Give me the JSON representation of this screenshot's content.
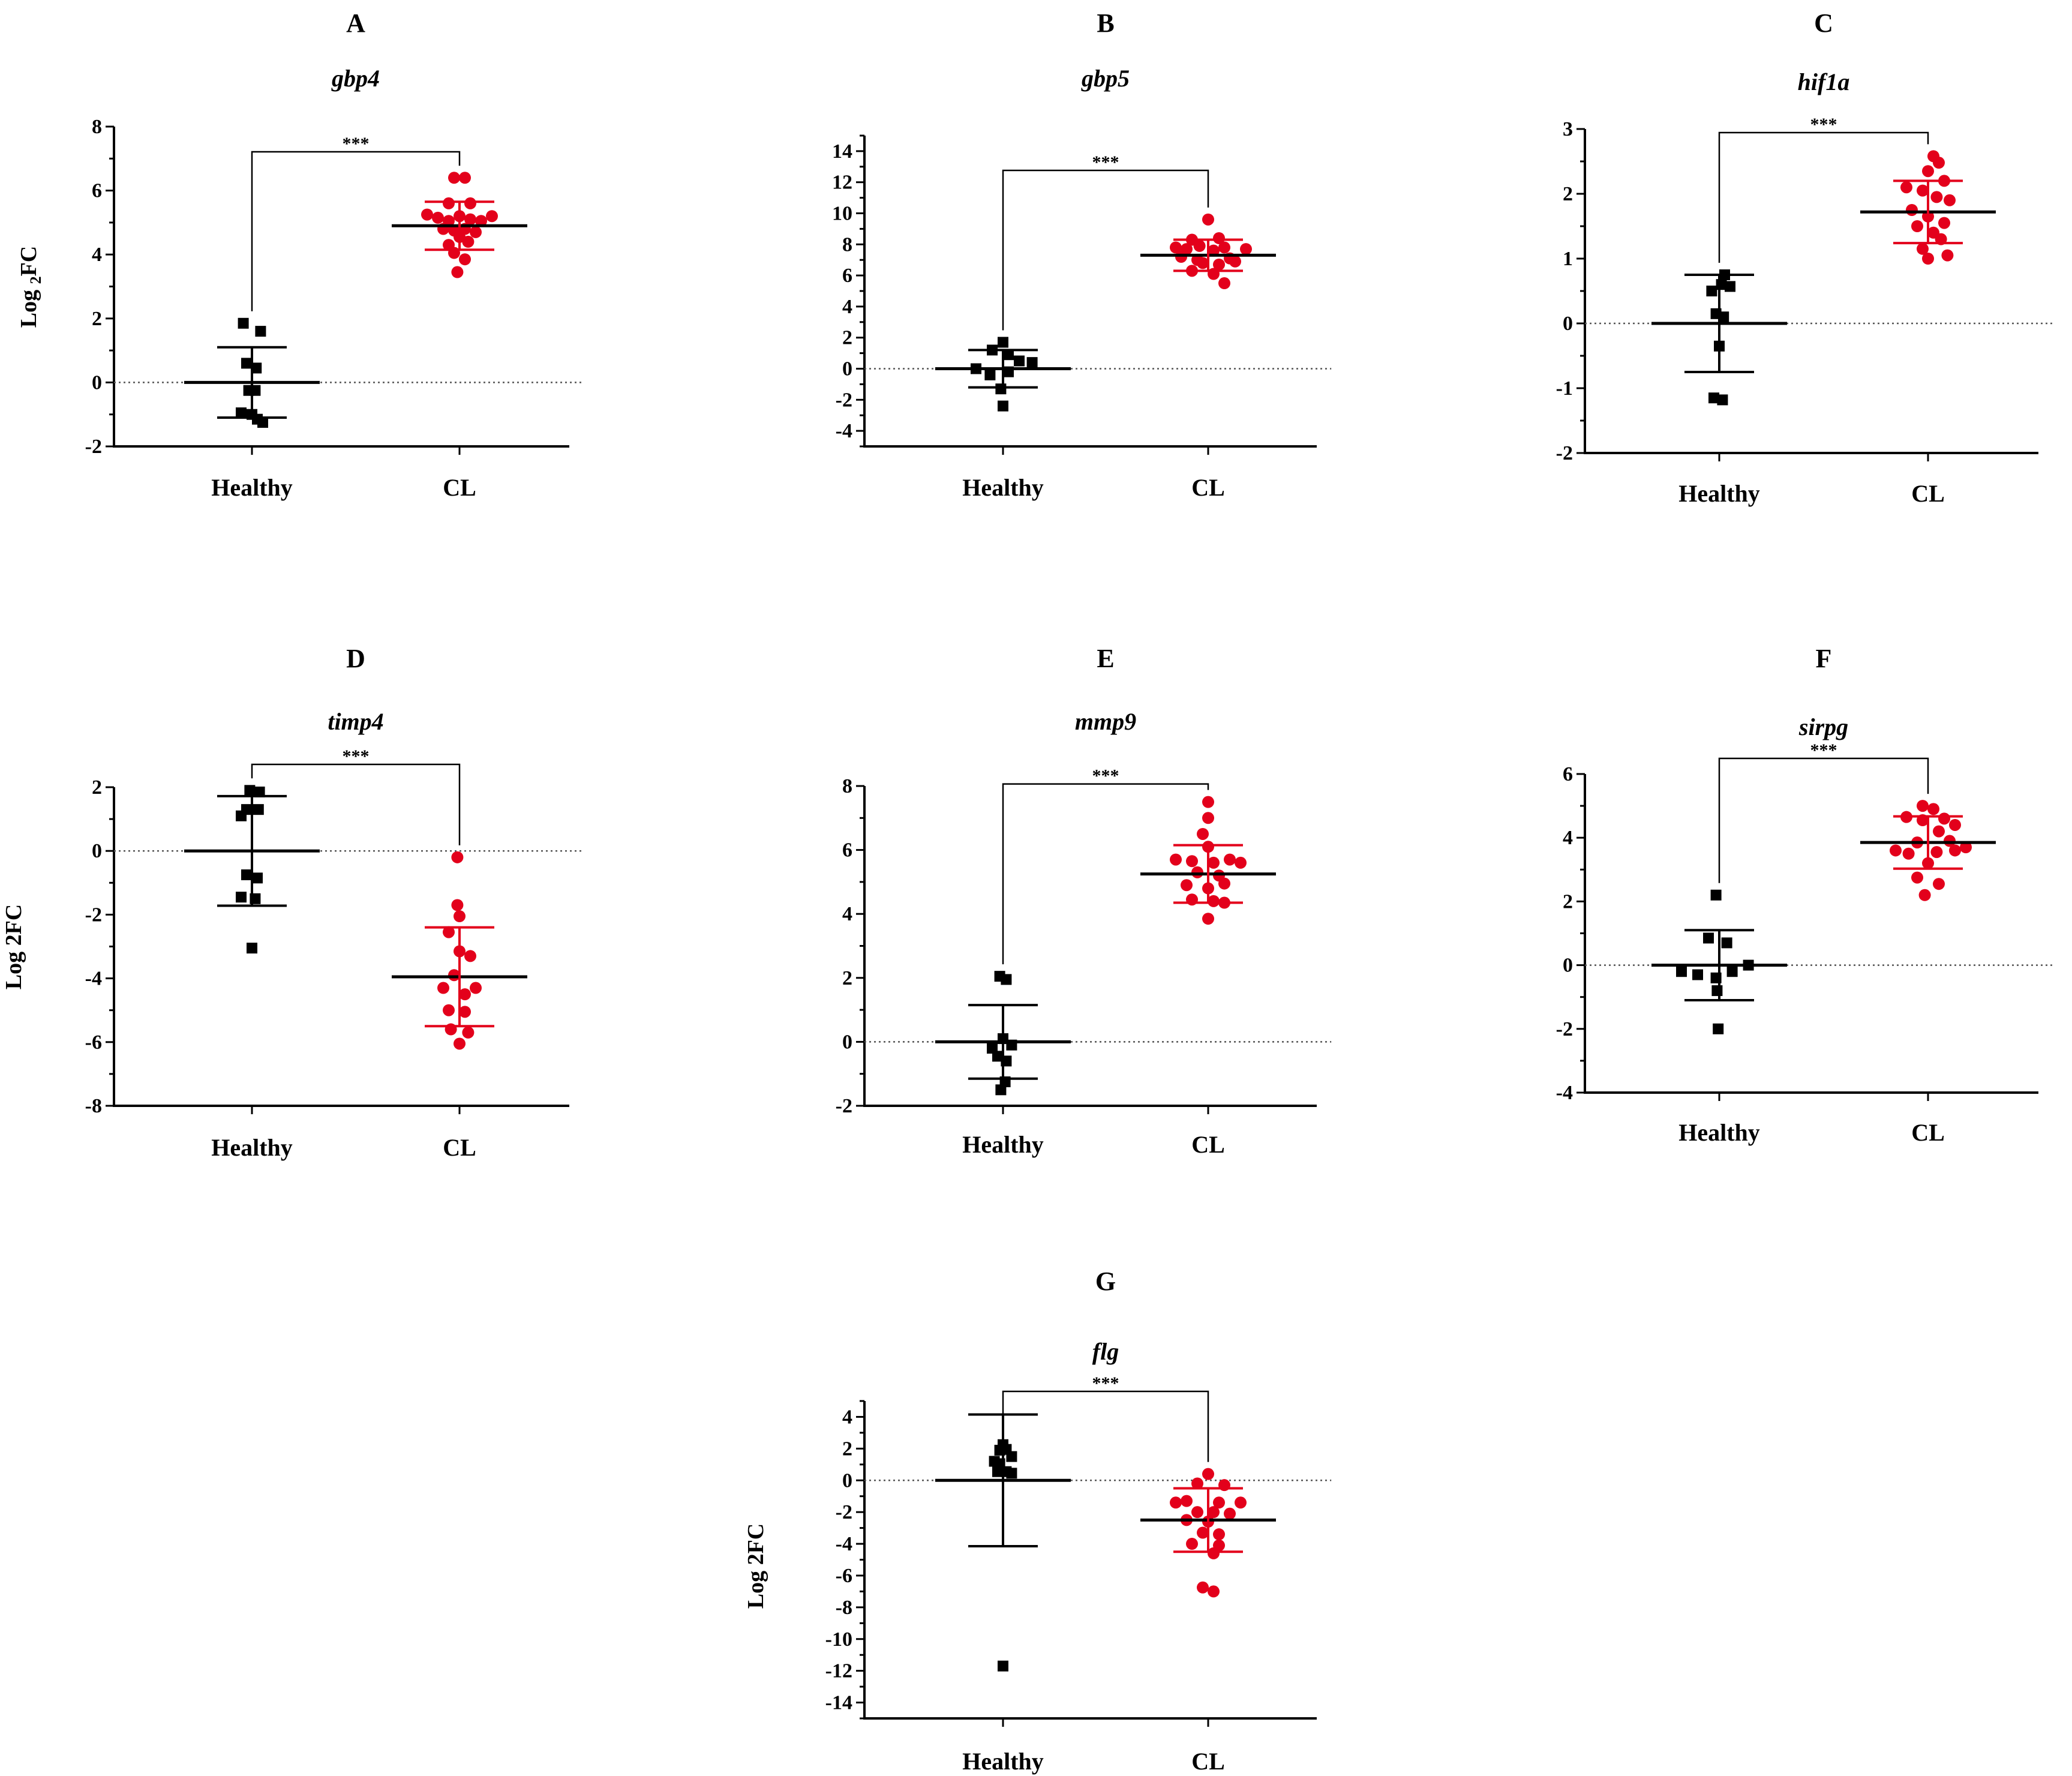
{
  "figure": {
    "categories": [
      "Healthy",
      "CL"
    ]
  },
  "colors": {
    "healthy": "#000000",
    "cl": "#e3001b",
    "zero_line": "#555555"
  },
  "chart_data": [
    {
      "type": "scatter",
      "panel": "A",
      "title": "gbp4",
      "ylabel": "Log 2FC",
      "ylabel_parts": {
        "pre": "Log ",
        "sub": "2",
        "post": "FC"
      },
      "categories": [
        "Healthy",
        "CL"
      ],
      "ylim": [
        -2,
        8
      ],
      "yticks": [
        -2,
        0,
        2,
        4,
        6,
        8
      ],
      "significance": "***",
      "series": [
        {
          "name": "Healthy",
          "marker": "square",
          "mean": 0,
          "sd": 1.1,
          "points": [
            [
              -0.08,
              1.85
            ],
            [
              0.08,
              1.6
            ],
            [
              -0.05,
              0.6
            ],
            [
              0.04,
              0.45
            ],
            [
              -0.03,
              -0.25
            ],
            [
              0.03,
              -0.25
            ],
            [
              -0.1,
              -0.95
            ],
            [
              0.0,
              -1.0
            ],
            [
              0.05,
              -1.15
            ],
            [
              0.1,
              -1.25
            ]
          ]
        },
        {
          "name": "CL",
          "marker": "circle",
          "mean": 4.9,
          "sd": 0.75,
          "points": [
            [
              -0.05,
              6.4
            ],
            [
              0.05,
              6.4
            ],
            [
              -0.1,
              5.6
            ],
            [
              0.1,
              5.6
            ],
            [
              -0.3,
              5.25
            ],
            [
              -0.2,
              5.15
            ],
            [
              -0.1,
              5.05
            ],
            [
              0.0,
              5.2
            ],
            [
              0.1,
              5.1
            ],
            [
              0.2,
              5.05
            ],
            [
              0.3,
              5.2
            ],
            [
              -0.15,
              4.8
            ],
            [
              -0.05,
              4.75
            ],
            [
              0.05,
              4.8
            ],
            [
              0.15,
              4.7
            ],
            [
              0.0,
              4.55
            ],
            [
              -0.1,
              4.3
            ],
            [
              0.08,
              4.4
            ],
            [
              -0.05,
              4.05
            ],
            [
              0.05,
              3.85
            ],
            [
              -0.02,
              3.45
            ]
          ]
        }
      ]
    },
    {
      "type": "scatter",
      "panel": "B",
      "title": "gbp5",
      "ylabel": "",
      "categories": [
        "Healthy",
        "CL"
      ],
      "ylim": [
        -5,
        15
      ],
      "yticks": [
        -4,
        -2,
        0,
        2,
        4,
        6,
        8,
        10,
        12,
        14
      ],
      "significance": "***",
      "series": [
        {
          "name": "Healthy",
          "marker": "square",
          "mean": 0,
          "sd": 1.2,
          "points": [
            [
              0.0,
              1.7
            ],
            [
              -0.1,
              1.2
            ],
            [
              0.05,
              0.9
            ],
            [
              0.15,
              0.5
            ],
            [
              0.27,
              0.4
            ],
            [
              -0.25,
              0.0
            ],
            [
              -0.12,
              -0.4
            ],
            [
              0.05,
              -0.2
            ],
            [
              -0.02,
              -1.3
            ],
            [
              0.0,
              -2.4
            ]
          ]
        },
        {
          "name": "CL",
          "marker": "circle",
          "mean": 7.3,
          "sd": 1.0,
          "points": [
            [
              0.0,
              9.6
            ],
            [
              -0.15,
              8.3
            ],
            [
              0.1,
              8.4
            ],
            [
              -0.3,
              7.8
            ],
            [
              -0.2,
              7.7
            ],
            [
              -0.08,
              7.9
            ],
            [
              0.05,
              7.6
            ],
            [
              0.15,
              7.8
            ],
            [
              0.35,
              7.7
            ],
            [
              -0.25,
              7.2
            ],
            [
              -0.1,
              7.0
            ],
            [
              0.2,
              7.1
            ],
            [
              -0.05,
              6.8
            ],
            [
              0.1,
              6.7
            ],
            [
              0.25,
              6.9
            ],
            [
              -0.15,
              6.3
            ],
            [
              0.05,
              6.1
            ],
            [
              0.15,
              5.5
            ]
          ]
        }
      ]
    },
    {
      "type": "scatter",
      "panel": "C",
      "title": "hif1a",
      "ylabel": "",
      "categories": [
        "Healthy",
        "CL"
      ],
      "ylim": [
        -2,
        3
      ],
      "yticks": [
        -2,
        -1,
        0,
        1,
        2,
        3
      ],
      "significance": "***",
      "series": [
        {
          "name": "Healthy",
          "marker": "square",
          "mean": 0,
          "sd": 0.75,
          "points": [
            [
              0.05,
              0.75
            ],
            [
              0.02,
              0.6
            ],
            [
              0.1,
              0.57
            ],
            [
              -0.07,
              0.5
            ],
            [
              -0.03,
              0.15
            ],
            [
              0.04,
              0.1
            ],
            [
              0.0,
              -0.35
            ],
            [
              -0.05,
              -1.15
            ],
            [
              0.03,
              -1.18
            ]
          ]
        },
        {
          "name": "CL",
          "marker": "circle",
          "mean": 1.72,
          "sd": 0.48,
          "points": [
            [
              0.05,
              2.58
            ],
            [
              0.1,
              2.48
            ],
            [
              0.0,
              2.35
            ],
            [
              0.15,
              2.2
            ],
            [
              -0.2,
              2.1
            ],
            [
              -0.05,
              2.05
            ],
            [
              0.08,
              1.95
            ],
            [
              0.2,
              1.9
            ],
            [
              -0.15,
              1.75
            ],
            [
              0.0,
              1.65
            ],
            [
              0.15,
              1.55
            ],
            [
              -0.1,
              1.5
            ],
            [
              0.05,
              1.4
            ],
            [
              0.12,
              1.3
            ],
            [
              -0.05,
              1.15
            ],
            [
              0.18,
              1.05
            ],
            [
              0.0,
              1.0
            ]
          ]
        }
      ]
    },
    {
      "type": "scatter",
      "panel": "D",
      "title": "timp4",
      "ylabel": "Log 2FC",
      "categories": [
        "Healthy",
        "CL"
      ],
      "ylim": [
        -8,
        2
      ],
      "yticks": [
        -8,
        -6,
        -4,
        -2,
        0,
        2
      ],
      "significance": "***",
      "series": [
        {
          "name": "Healthy",
          "marker": "square",
          "mean": 0,
          "sd": 1.72,
          "points": [
            [
              -0.02,
              1.9
            ],
            [
              0.07,
              1.85
            ],
            [
              -0.05,
              1.3
            ],
            [
              0.06,
              1.3
            ],
            [
              -0.1,
              1.1
            ],
            [
              -0.05,
              -0.75
            ],
            [
              0.05,
              -0.85
            ],
            [
              -0.1,
              -1.45
            ],
            [
              0.03,
              -1.5
            ],
            [
              0.0,
              -3.05
            ]
          ]
        },
        {
          "name": "CL",
          "marker": "circle",
          "mean": -3.95,
          "sd": 1.55,
          "points": [
            [
              -0.02,
              -0.2
            ],
            [
              -0.02,
              -1.7
            ],
            [
              0.0,
              -2.05
            ],
            [
              -0.1,
              -2.55
            ],
            [
              0.0,
              -3.15
            ],
            [
              0.1,
              -3.3
            ],
            [
              -0.05,
              -3.9
            ],
            [
              -0.15,
              -4.3
            ],
            [
              0.05,
              -4.5
            ],
            [
              0.15,
              -4.3
            ],
            [
              -0.1,
              -5.0
            ],
            [
              0.05,
              -5.05
            ],
            [
              -0.08,
              -5.6
            ],
            [
              0.08,
              -5.7
            ],
            [
              0.0,
              -6.05
            ]
          ]
        }
      ]
    },
    {
      "type": "scatter",
      "panel": "E",
      "title": "mmp9",
      "ylabel": "",
      "categories": [
        "Healthy",
        "CL"
      ],
      "ylim": [
        -2,
        8
      ],
      "yticks": [
        -2,
        0,
        2,
        4,
        6,
        8
      ],
      "significance": "***",
      "series": [
        {
          "name": "Healthy",
          "marker": "square",
          "mean": 0,
          "sd": 1.15,
          "points": [
            [
              -0.03,
              2.05
            ],
            [
              0.03,
              1.95
            ],
            [
              0.0,
              0.1
            ],
            [
              -0.1,
              -0.2
            ],
            [
              0.08,
              -0.1
            ],
            [
              -0.05,
              -0.45
            ],
            [
              0.03,
              -0.6
            ],
            [
              0.02,
              -1.25
            ],
            [
              -0.02,
              -1.5
            ]
          ]
        },
        {
          "name": "CL",
          "marker": "circle",
          "mean": 5.25,
          "sd": 0.9,
          "points": [
            [
              0.0,
              7.5
            ],
            [
              0.0,
              7.0
            ],
            [
              -0.05,
              6.5
            ],
            [
              0.0,
              6.1
            ],
            [
              -0.3,
              5.7
            ],
            [
              -0.15,
              5.65
            ],
            [
              0.05,
              5.6
            ],
            [
              0.2,
              5.7
            ],
            [
              0.3,
              5.6
            ],
            [
              -0.1,
              5.3
            ],
            [
              0.1,
              5.2
            ],
            [
              -0.2,
              4.9
            ],
            [
              0.0,
              4.8
            ],
            [
              0.15,
              4.95
            ],
            [
              -0.15,
              4.45
            ],
            [
              0.05,
              4.4
            ],
            [
              0.15,
              4.35
            ],
            [
              0.0,
              3.85
            ]
          ]
        }
      ]
    },
    {
      "type": "scatter",
      "panel": "F",
      "title": "sirpg",
      "ylabel": "",
      "categories": [
        "Healthy",
        "CL"
      ],
      "ylim": [
        -4,
        6
      ],
      "yticks": [
        -4,
        -2,
        0,
        2,
        4,
        6
      ],
      "significance": "***",
      "series": [
        {
          "name": "Healthy",
          "marker": "square",
          "mean": 0,
          "sd": 1.1,
          "points": [
            [
              -0.03,
              2.2
            ],
            [
              -0.1,
              0.85
            ],
            [
              0.07,
              0.7
            ],
            [
              -0.35,
              -0.2
            ],
            [
              -0.2,
              -0.3
            ],
            [
              0.12,
              -0.2
            ],
            [
              0.27,
              0.0
            ],
            [
              -0.03,
              -0.4
            ],
            [
              -0.02,
              -0.8
            ],
            [
              -0.01,
              -2.0
            ]
          ]
        },
        {
          "name": "CL",
          "marker": "circle",
          "mean": 3.85,
          "sd": 0.82,
          "points": [
            [
              -0.05,
              5.0
            ],
            [
              0.05,
              4.9
            ],
            [
              -0.2,
              4.65
            ],
            [
              -0.05,
              4.55
            ],
            [
              0.15,
              4.6
            ],
            [
              0.25,
              4.4
            ],
            [
              0.1,
              4.2
            ],
            [
              -0.1,
              3.85
            ],
            [
              0.2,
              3.9
            ],
            [
              0.35,
              3.7
            ],
            [
              -0.3,
              3.6
            ],
            [
              -0.18,
              3.5
            ],
            [
              0.08,
              3.55
            ],
            [
              0.25,
              3.6
            ],
            [
              0.0,
              3.2
            ],
            [
              -0.1,
              2.75
            ],
            [
              0.1,
              2.55
            ],
            [
              -0.03,
              2.2
            ]
          ]
        }
      ]
    },
    {
      "type": "scatter",
      "panel": "G",
      "title": "flg",
      "ylabel": "Log 2FC",
      "categories": [
        "Healthy",
        "CL"
      ],
      "ylim": [
        -15,
        5
      ],
      "yticks": [
        -14,
        -12,
        -10,
        -8,
        -6,
        -4,
        -2,
        0,
        2,
        4
      ],
      "significance": "***",
      "series": [
        {
          "name": "Healthy",
          "marker": "square",
          "mean": 0,
          "sd": 4.15,
          "points": [
            [
              0.0,
              2.25
            ],
            [
              -0.03,
              1.9
            ],
            [
              0.03,
              1.95
            ],
            [
              0.08,
              1.5
            ],
            [
              -0.08,
              1.2
            ],
            [
              -0.03,
              1.05
            ],
            [
              0.03,
              0.55
            ],
            [
              0.08,
              0.45
            ],
            [
              -0.05,
              0.55
            ],
            [
              0.0,
              -11.7
            ]
          ]
        },
        {
          "name": "CL",
          "marker": "circle",
          "mean": -2.5,
          "sd": 2.0,
          "points": [
            [
              0.0,
              0.4
            ],
            [
              -0.1,
              -0.2
            ],
            [
              0.15,
              -0.3
            ],
            [
              -0.3,
              -1.4
            ],
            [
              -0.2,
              -1.3
            ],
            [
              0.1,
              -1.4
            ],
            [
              0.3,
              -1.4
            ],
            [
              -0.1,
              -2.0
            ],
            [
              0.05,
              -2.0
            ],
            [
              0.2,
              -2.1
            ],
            [
              -0.2,
              -2.5
            ],
            [
              0.0,
              -2.6
            ],
            [
              -0.05,
              -3.3
            ],
            [
              0.1,
              -3.4
            ],
            [
              -0.15,
              -4.0
            ],
            [
              0.1,
              -4.1
            ],
            [
              0.05,
              -4.6
            ],
            [
              -0.05,
              -6.75
            ],
            [
              0.05,
              -7.0
            ]
          ]
        }
      ]
    }
  ]
}
